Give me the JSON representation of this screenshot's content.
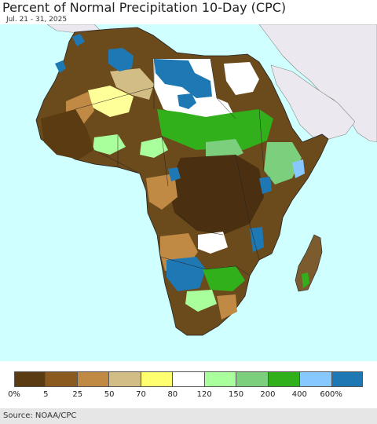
{
  "header": {
    "title": "Percent of Normal Precipitation 10-Day (CPC)",
    "date_range": "Jul. 21 - 31, 2025"
  },
  "map": {
    "region": "Africa",
    "ocean_color": "#cfffff",
    "outside_land_color": "#ece8ef"
  },
  "legend": {
    "colors": [
      "#5a3b12",
      "#8b5a1e",
      "#c08a45",
      "#d2bd85",
      "#ffff70",
      "#ffffff",
      "#a8ff9c",
      "#7ccf7c",
      "#32b01c",
      "#86c8ff",
      "#1e78b4"
    ],
    "ticks": [
      "0%",
      "5",
      "25",
      "50",
      "70",
      "80",
      "120",
      "150",
      "200",
      "400",
      "600%"
    ]
  },
  "footer": {
    "source": "Source: NOAA/CPC"
  }
}
